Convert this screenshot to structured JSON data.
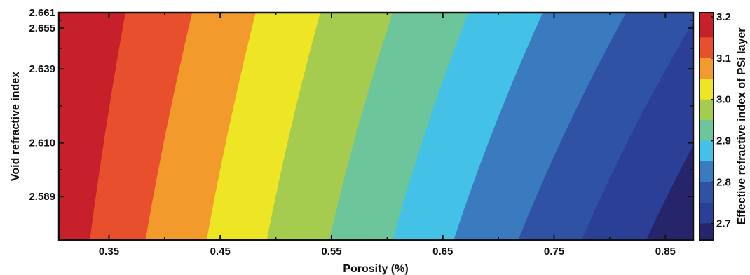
{
  "chart_data": {
    "type": "heatmap",
    "subtype": "filled-contour",
    "xlabel": "Porosity (%)",
    "ylabel": "Void refractive index",
    "colorbar_label": "Effective refractive index of PSi layer",
    "xlim": [
      0.305,
      0.875
    ],
    "ylim": [
      2.572,
      2.661
    ],
    "x_ticks": [
      0.35,
      0.45,
      0.55,
      0.65,
      0.75,
      0.85
    ],
    "x_tick_labels": [
      "0.35",
      "0.45",
      "0.55",
      "0.65",
      "0.75",
      "0.85"
    ],
    "y_ticks": [
      2.589,
      2.61,
      2.639,
      2.655,
      2.661
    ],
    "y_tick_labels": [
      "2.589",
      "2.610",
      "2.639",
      "2.655",
      "2.661"
    ],
    "colorbar_range": [
      2.66,
      3.21
    ],
    "colorbar_ticks": [
      2.7,
      2.8,
      2.9,
      3.0,
      3.1,
      3.2
    ],
    "colorbar_tick_labels": [
      "2.7",
      "2.8",
      "2.9",
      "3.0",
      "3.1",
      "3.2"
    ],
    "contour_levels": [
      {
        "range": [
          3.15,
          3.21
        ],
        "color": "#c8202a"
      },
      {
        "range": [
          3.1,
          3.15
        ],
        "color": "#e8502d"
      },
      {
        "range": [
          3.05,
          3.1
        ],
        "color": "#f39a2d"
      },
      {
        "range": [
          3.0,
          3.05
        ],
        "color": "#eee524"
      },
      {
        "range": [
          2.95,
          3.0
        ],
        "color": "#a5cc4f"
      },
      {
        "range": [
          2.9,
          2.95
        ],
        "color": "#6dc59c"
      },
      {
        "range": [
          2.85,
          2.9
        ],
        "color": "#43c1e6"
      },
      {
        "range": [
          2.8,
          2.85
        ],
        "color": "#3a7bbf"
      },
      {
        "range": [
          2.75,
          2.8
        ],
        "color": "#2f52a4"
      },
      {
        "range": [
          2.7,
          2.75
        ],
        "color": "#2c3f96"
      },
      {
        "range": [
          2.66,
          2.7
        ],
        "color": "#26246a"
      }
    ],
    "contour_boundaries": [
      {
        "level": 3.15,
        "x_at_bottom": 0.333,
        "x_at_top": 0.365
      },
      {
        "level": 3.1,
        "x_at_bottom": 0.383,
        "x_at_top": 0.425
      },
      {
        "level": 3.05,
        "x_at_bottom": 0.438,
        "x_at_top": 0.482
      },
      {
        "level": 3.0,
        "x_at_bottom": 0.492,
        "x_at_top": 0.54
      },
      {
        "level": 2.95,
        "x_at_bottom": 0.548,
        "x_at_top": 0.605
      },
      {
        "level": 2.9,
        "x_at_bottom": 0.605,
        "x_at_top": 0.673
      },
      {
        "level": 2.85,
        "x_at_bottom": 0.66,
        "x_at_top": 0.74
      },
      {
        "level": 2.8,
        "x_at_bottom": 0.718,
        "x_at_top": 0.815
      },
      {
        "level": 2.75,
        "x_at_bottom": 0.775,
        "x_at_top": 0.88
      },
      {
        "level": 2.7,
        "x_at_bottom": 0.833,
        "x_at_top": 0.945
      }
    ]
  }
}
